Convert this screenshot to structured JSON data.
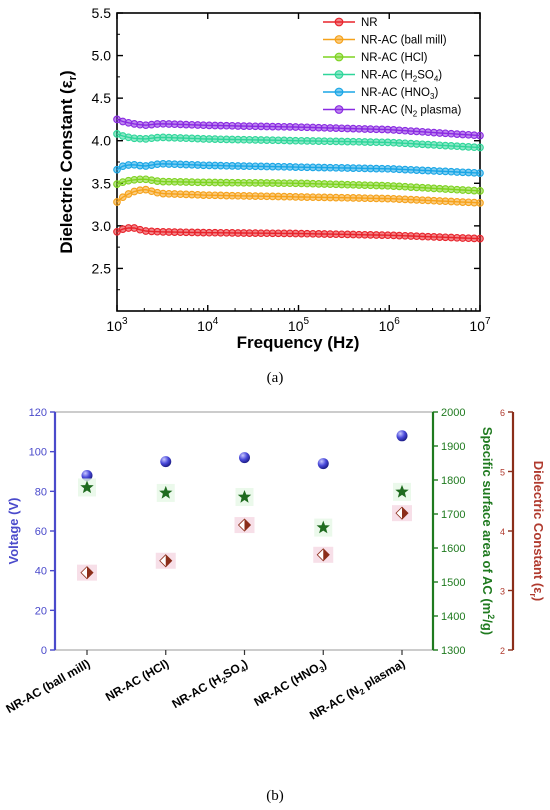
{
  "figure": {
    "caption_a": "(a)",
    "caption_b": "(b)"
  },
  "chart_data": [
    {
      "type": "line",
      "xlabel": "Frequency (Hz)",
      "ylabel_main": "Dielectric Constant (ε",
      "ylabel_sub": "r",
      "ylabel_close": ")",
      "x_scale": "log",
      "xlim": [
        1000,
        10000000
      ],
      "ylim": [
        2.0,
        5.5
      ],
      "x_ticks": [
        {
          "base": "10",
          "exp": "3",
          "value": 1000
        },
        {
          "base": "10",
          "exp": "4",
          "value": 10000
        },
        {
          "base": "10",
          "exp": "5",
          "value": 100000
        },
        {
          "base": "10",
          "exp": "6",
          "value": 1000000
        },
        {
          "base": "10",
          "exp": "7",
          "value": 10000000
        }
      ],
      "y_ticks": [
        "2.5",
        "3.0",
        "3.5",
        "4.0",
        "4.5",
        "5.0",
        "5.5"
      ],
      "legend_position": "top-right",
      "series": [
        {
          "name": "NR",
          "name_sub": "",
          "name_after": "",
          "color": "#e8242c",
          "points": [
            [
              1000,
              2.93
            ],
            [
              1200,
              2.97
            ],
            [
              1500,
              2.98
            ],
            [
              2000,
              2.94
            ],
            [
              3000,
              2.93
            ],
            [
              10000,
              2.92
            ],
            [
              100000,
              2.91
            ],
            [
              1000000,
              2.89
            ],
            [
              10000000,
              2.85
            ]
          ]
        },
        {
          "name": "NR-AC (ball mill)",
          "name_sub": "",
          "name_after": "",
          "color": "#f5a21b",
          "points": [
            [
              1000,
              3.28
            ],
            [
              1200,
              3.35
            ],
            [
              1500,
              3.4
            ],
            [
              2000,
              3.43
            ],
            [
              3000,
              3.38
            ],
            [
              10000,
              3.36
            ],
            [
              100000,
              3.34
            ],
            [
              1000000,
              3.32
            ],
            [
              10000000,
              3.27
            ]
          ]
        },
        {
          "name": "NR-AC (HCl)",
          "name_sub": "",
          "name_after": "",
          "color": "#7ed321",
          "points": [
            [
              1000,
              3.49
            ],
            [
              1200,
              3.52
            ],
            [
              1500,
              3.54
            ],
            [
              2000,
              3.55
            ],
            [
              3000,
              3.52
            ],
            [
              10000,
              3.51
            ],
            [
              100000,
              3.5
            ],
            [
              1000000,
              3.47
            ],
            [
              10000000,
              3.41
            ]
          ]
        },
        {
          "name": "NR-AC (H",
          "name_sub": "2",
          "name_after": "SO",
          "name_sub2": "4",
          "name_end": ")",
          "color": "#2fd69a",
          "points": [
            [
              1000,
              4.08
            ],
            [
              1200,
              4.05
            ],
            [
              1500,
              4.03
            ],
            [
              2000,
              4.02
            ],
            [
              3000,
              4.04
            ],
            [
              10000,
              4.02
            ],
            [
              100000,
              4.0
            ],
            [
              1000000,
              3.98
            ],
            [
              10000000,
              3.92
            ]
          ]
        },
        {
          "name": "NR-AC (HNO",
          "name_sub": "3",
          "name_after": ")",
          "color": "#1aa6e6",
          "points": [
            [
              1000,
              3.66
            ],
            [
              1200,
              3.71
            ],
            [
              1500,
              3.72
            ],
            [
              2000,
              3.7
            ],
            [
              3000,
              3.73
            ],
            [
              10000,
              3.71
            ],
            [
              100000,
              3.69
            ],
            [
              1000000,
              3.67
            ],
            [
              10000000,
              3.62
            ]
          ]
        },
        {
          "name": "NR-AC (N",
          "name_sub": "2",
          "name_after": " plasma)",
          "color": "#8a2be2",
          "points": [
            [
              1000,
              4.25
            ],
            [
              1200,
              4.22
            ],
            [
              1500,
              4.2
            ],
            [
              2000,
              4.18
            ],
            [
              3000,
              4.2
            ],
            [
              10000,
              4.18
            ],
            [
              100000,
              4.16
            ],
            [
              1000000,
              4.13
            ],
            [
              10000000,
              4.06
            ]
          ]
        }
      ]
    },
    {
      "type": "scatter",
      "categories": [
        {
          "pre": "NR-AC (ball mill)",
          "sub": "",
          "post": ""
        },
        {
          "pre": "NR-AC (HCl)",
          "sub": "",
          "post": ""
        },
        {
          "pre": "NR-AC (H",
          "sub": "2",
          "post": "SO",
          "sub2": "4",
          "end": ")"
        },
        {
          "pre": "NR-AC (HNO",
          "sub": "3",
          "post": ")"
        },
        {
          "pre": "NR-AC (N",
          "sub": "2",
          "post": " plasma)"
        }
      ],
      "axes": {
        "left": {
          "label": "Voltage (V)",
          "ylim": [
            0,
            120
          ],
          "ticks": [
            "0",
            "20",
            "40",
            "60",
            "80",
            "100",
            "120"
          ],
          "color": "#4a4acb"
        },
        "right1": {
          "label_pre": "Specific surface area of AC (m",
          "label_sup": "2",
          "label_post": "/g)",
          "ylim": [
            1300,
            2000
          ],
          "ticks": [
            "1300",
            "1400",
            "1500",
            "1600",
            "1700",
            "1800",
            "1900",
            "2000"
          ],
          "color": "#1f7a1f"
        },
        "right2": {
          "label_pre": "Dielectric Constant (ε",
          "label_sub": "r",
          "label_post": ")",
          "ylim": [
            2,
            6
          ],
          "ticks": [
            "2",
            "3",
            "4",
            "5",
            "6"
          ],
          "color": "#b03a2e"
        }
      },
      "series": [
        {
          "axis": "left",
          "marker": "sphere",
          "values": [
            88,
            95,
            97,
            94,
            108
          ]
        },
        {
          "axis": "right1",
          "marker": "star",
          "values": [
            1778,
            1762,
            1750,
            1660,
            1765
          ]
        },
        {
          "axis": "right2",
          "marker": "diamond",
          "values": [
            3.3,
            3.5,
            4.1,
            3.6,
            4.3
          ]
        }
      ]
    }
  ]
}
